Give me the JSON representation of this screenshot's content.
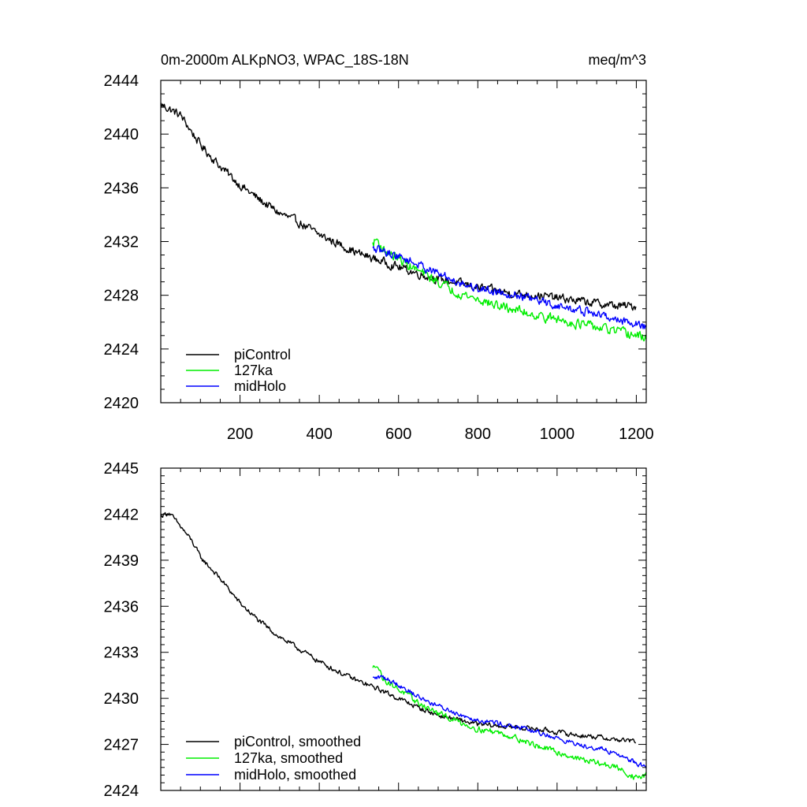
{
  "chart_data": [
    {
      "type": "line",
      "title": "0m-2000m ALKpNO3, WPAC_18S-18N",
      "units": "meq/m^3",
      "xlabel": "",
      "ylabel": "",
      "xlim": [
        0,
        1225
      ],
      "ylim": [
        2420,
        2444
      ],
      "x_ticks": [
        200,
        400,
        600,
        800,
        1000,
        1200
      ],
      "y_ticks": [
        2420,
        2424,
        2428,
        2432,
        2436,
        2440,
        2444
      ],
      "legend_position": "bottom-left",
      "series": [
        {
          "name": "piControl",
          "color": "#000000",
          "x_range": [
            1,
            1200
          ],
          "anchors": [
            [
              1,
              2442.2
            ],
            [
              50,
              2441.4
            ],
            [
              100,
              2439.2
            ],
            [
              150,
              2437.6
            ],
            [
              200,
              2436.2
            ],
            [
              250,
              2435.1
            ],
            [
              300,
              2434.1
            ],
            [
              350,
              2433.4
            ],
            [
              400,
              2432.5
            ],
            [
              450,
              2431.8
            ],
            [
              500,
              2431.1
            ],
            [
              550,
              2430.6
            ],
            [
              600,
              2430.1
            ],
            [
              650,
              2429.6
            ],
            [
              700,
              2429.2
            ],
            [
              750,
              2428.9
            ],
            [
              800,
              2428.6
            ],
            [
              850,
              2428.3
            ],
            [
              900,
              2428.1
            ],
            [
              950,
              2428.0
            ],
            [
              1000,
              2427.8
            ],
            [
              1050,
              2427.6
            ],
            [
              1100,
              2427.4
            ],
            [
              1150,
              2427.2
            ],
            [
              1200,
              2427.2
            ]
          ],
          "noise": 0.5
        },
        {
          "name": "127ka",
          "color": "#00ee00",
          "x_range": [
            535,
            1225
          ],
          "anchors": [
            [
              535,
              2431.8
            ],
            [
              545,
              2432.2
            ],
            [
              560,
              2431.4
            ],
            [
              600,
              2430.7
            ],
            [
              650,
              2429.8
            ],
            [
              700,
              2429.0
            ],
            [
              750,
              2428.2
            ],
            [
              800,
              2427.7
            ],
            [
              850,
              2427.2
            ],
            [
              900,
              2426.9
            ],
            [
              950,
              2426.5
            ],
            [
              1000,
              2426.2
            ],
            [
              1050,
              2425.9
            ],
            [
              1100,
              2425.6
            ],
            [
              1150,
              2425.3
            ],
            [
              1200,
              2425.0
            ],
            [
              1225,
              2424.8
            ]
          ],
          "noise": 0.55
        },
        {
          "name": "midHolo",
          "color": "#0000ff",
          "x_range": [
            535,
            1225
          ],
          "anchors": [
            [
              535,
              2431.4
            ],
            [
              560,
              2431.3
            ],
            [
              600,
              2430.9
            ],
            [
              650,
              2430.3
            ],
            [
              700,
              2429.6
            ],
            [
              750,
              2429.0
            ],
            [
              800,
              2428.5
            ],
            [
              850,
              2428.3
            ],
            [
              900,
              2428.0
            ],
            [
              950,
              2427.6
            ],
            [
              1000,
              2427.2
            ],
            [
              1050,
              2426.9
            ],
            [
              1100,
              2426.6
            ],
            [
              1150,
              2426.2
            ],
            [
              1200,
              2425.9
            ],
            [
              1225,
              2425.6
            ]
          ],
          "noise": 0.5
        }
      ]
    },
    {
      "type": "line",
      "title": "",
      "xlabel": "",
      "ylabel": "",
      "xlim": [
        0,
        1225
      ],
      "ylim": [
        2424,
        2445
      ],
      "y_ticks": [
        2424,
        2427,
        2430,
        2433,
        2436,
        2439,
        2442,
        2445
      ],
      "legend_position": "bottom-left",
      "series": [
        {
          "name": "piControl, smoothed",
          "color": "#000000",
          "x_range": [
            1,
            1200
          ],
          "anchors": [
            [
              1,
              2441.9
            ],
            [
              20,
              2442.1
            ],
            [
              50,
              2441.2
            ],
            [
              80,
              2440.2
            ],
            [
              100,
              2439.2
            ],
            [
              150,
              2437.8
            ],
            [
              200,
              2436.2
            ],
            [
              250,
              2435.0
            ],
            [
              300,
              2434.0
            ],
            [
              350,
              2433.2
            ],
            [
              400,
              2432.4
            ],
            [
              450,
              2431.7
            ],
            [
              500,
              2431.1
            ],
            [
              550,
              2430.6
            ],
            [
              600,
              2430.0
            ],
            [
              650,
              2429.4
            ],
            [
              700,
              2428.9
            ],
            [
              750,
              2428.6
            ],
            [
              800,
              2428.3
            ],
            [
              850,
              2428.2
            ],
            [
              900,
              2428.1
            ],
            [
              950,
              2428.0
            ],
            [
              1000,
              2427.8
            ],
            [
              1050,
              2427.6
            ],
            [
              1100,
              2427.5
            ],
            [
              1150,
              2427.3
            ],
            [
              1200,
              2427.2
            ]
          ],
          "noise": 0.25
        },
        {
          "name": "127ka, smoothed",
          "color": "#00ee00",
          "x_range": [
            535,
            1225
          ],
          "anchors": [
            [
              535,
              2431.9
            ],
            [
              545,
              2432.3
            ],
            [
              560,
              2431.3
            ],
            [
              600,
              2430.6
            ],
            [
              650,
              2429.7
            ],
            [
              700,
              2429.0
            ],
            [
              750,
              2428.5
            ],
            [
              800,
              2428.0
            ],
            [
              850,
              2427.8
            ],
            [
              900,
              2427.4
            ],
            [
              950,
              2426.9
            ],
            [
              1000,
              2426.5
            ],
            [
              1050,
              2426.1
            ],
            [
              1100,
              2425.8
            ],
            [
              1150,
              2425.5
            ],
            [
              1200,
              2424.8
            ],
            [
              1225,
              2425.0
            ]
          ],
          "noise": 0.3
        },
        {
          "name": "midHolo, smoothed",
          "color": "#0000ff",
          "x_range": [
            535,
            1225
          ],
          "anchors": [
            [
              535,
              2431.3
            ],
            [
              560,
              2431.4
            ],
            [
              600,
              2430.9
            ],
            [
              650,
              2430.1
            ],
            [
              700,
              2429.5
            ],
            [
              750,
              2429.0
            ],
            [
              800,
              2428.6
            ],
            [
              850,
              2428.4
            ],
            [
              900,
              2428.1
            ],
            [
              950,
              2427.8
            ],
            [
              1000,
              2427.4
            ],
            [
              1050,
              2427.0
            ],
            [
              1100,
              2426.8
            ],
            [
              1150,
              2426.4
            ],
            [
              1200,
              2425.8
            ],
            [
              1225,
              2425.5
            ]
          ],
          "noise": 0.25
        }
      ]
    }
  ]
}
